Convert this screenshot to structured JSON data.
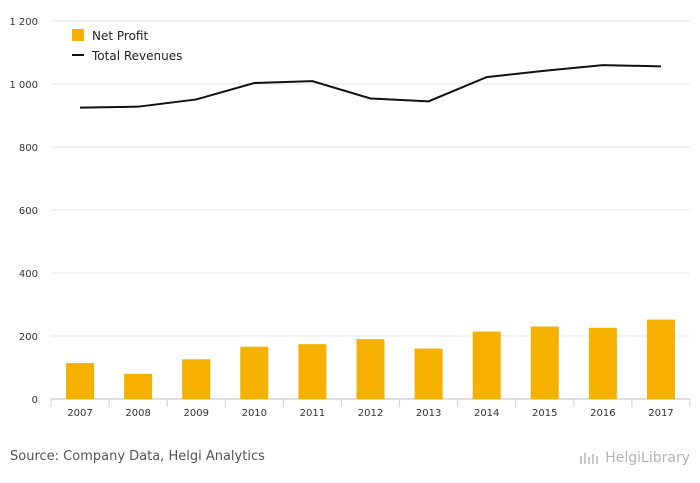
{
  "chart_data": {
    "type": "bar",
    "categories": [
      "2007",
      "2008",
      "2009",
      "2010",
      "2011",
      "2012",
      "2013",
      "2014",
      "2015",
      "2016",
      "2017"
    ],
    "series": [
      {
        "name": "Net Profit",
        "kind": "bar",
        "color": "#f5b000",
        "values": [
          114,
          80,
          126,
          166,
          174,
          190,
          160,
          214,
          230,
          226,
          252
        ]
      },
      {
        "name": "Total Revenues",
        "kind": "line",
        "color": "#111111",
        "values": [
          925,
          928,
          951,
          1003,
          1009,
          954,
          945,
          1022,
          1042,
          1060,
          1056
        ]
      }
    ],
    "ylim": [
      0,
      1200
    ],
    "yticks": [
      0,
      200,
      400,
      600,
      800,
      1000,
      1200
    ],
    "ytick_labels": [
      "0",
      "200",
      "400",
      "600",
      "800",
      "1 000",
      "1 200"
    ],
    "grid": true,
    "legend_position": "top-left"
  },
  "footer": {
    "source": "Source: Company Data, Helgi Analytics",
    "logo_text": "HelgiLibrary"
  }
}
